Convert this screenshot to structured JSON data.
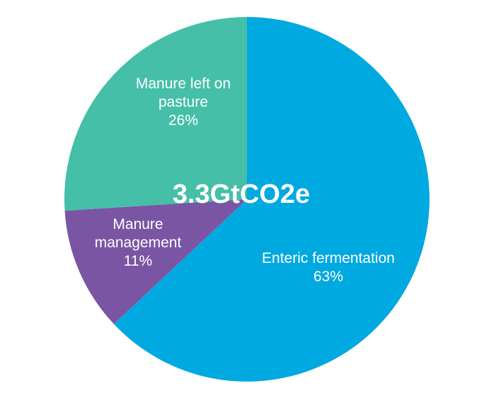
{
  "chart_data": {
    "type": "pie",
    "center_label": "3.3GtCO2e",
    "slices": [
      {
        "name_lines": [
          "Enteric fermentation"
        ],
        "value": 63,
        "value_label": "63%",
        "color": "#00A9E0"
      },
      {
        "name_lines": [
          "Manure",
          "management"
        ],
        "value": 11,
        "value_label": "11%",
        "color": "#7A55A3"
      },
      {
        "name_lines": [
          "Manure left on",
          "pasture"
        ],
        "value": 26,
        "value_label": "26%",
        "color": "#45BFA8"
      }
    ],
    "start_angle": "12 o'clock",
    "direction": "clockwise",
    "legend": "none"
  }
}
